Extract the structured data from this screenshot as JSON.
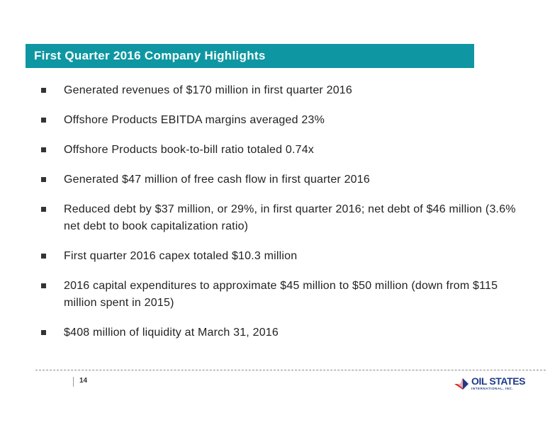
{
  "header": {
    "title": "First Quarter 2016 Company Highlights",
    "bar_color": "#0e97a2"
  },
  "bullets": [
    "Generated revenues of $170 million in first quarter 2016",
    "Offshore Products EBITDA margins averaged 23%",
    "Offshore Products book-to-bill ratio totaled 0.74x",
    "Generated $47 million of free cash flow in first quarter 2016",
    "Reduced debt by $37 million, or 29%, in first quarter 2016; net debt of $46 million (3.6% net debt to book capitalization ratio)",
    "First quarter 2016 capex totaled $10.3 million",
    "2016 capital expenditures to approximate $45 million to $50 million (down from $115 million spent in 2015)",
    "$408 million of liquidity at March 31, 2016"
  ],
  "footer": {
    "page_number": "14",
    "logo": {
      "name": "OIL STATES",
      "subtitle": "INTERNATIONAL, INC.",
      "icon": "oil-states-logo-icon",
      "colors": {
        "blue": "#1f3a8a",
        "red": "#d52b2b"
      }
    }
  }
}
